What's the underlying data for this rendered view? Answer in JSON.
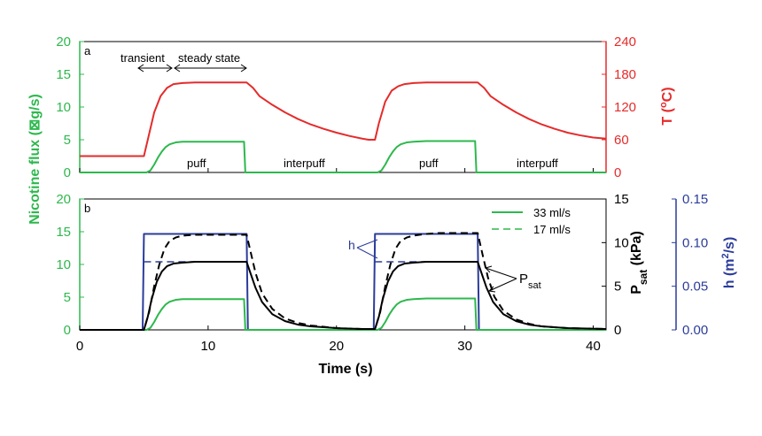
{
  "chart_data": [
    {
      "panel": "a",
      "type": "line",
      "xlim": [
        0,
        41
      ],
      "annotations": {
        "transient": "transient",
        "steady_state": "steady state",
        "puff_1": "puff",
        "interpuff_1": "interpuff",
        "puff_2": "puff",
        "interpuff_2": "interpuff"
      },
      "left_axis": {
        "label": "Nicotine flux (⊠g/s)",
        "ylim": [
          0,
          20
        ],
        "ticks": [
          "0",
          "5",
          "10",
          "15",
          "20"
        ],
        "color": "#2db84d"
      },
      "right_axis": {
        "label_main": "T (",
        "label_sup": "o",
        "label_end": "C)",
        "ylim": [
          0,
          240
        ],
        "ticks": [
          "0",
          "60",
          "120",
          "180",
          "240"
        ],
        "color": "#e52b2b"
      },
      "series": [
        {
          "axis": "right",
          "color": "#e52b2b",
          "x": [
            0,
            5,
            5.3,
            5.8,
            6.3,
            6.8,
            7.3,
            8,
            9,
            10,
            11,
            12,
            13,
            13.5,
            14,
            15,
            16,
            17,
            18,
            19,
            20,
            21,
            22,
            22.5,
            23,
            23.3,
            23.8,
            24.3,
            24.8,
            25.3,
            26,
            27,
            28,
            29,
            30,
            31,
            31.5,
            32,
            33,
            34,
            35,
            36,
            37,
            38,
            39,
            40,
            41
          ],
          "values": [
            30,
            30,
            60,
            110,
            140,
            155,
            162,
            164,
            165,
            165,
            165,
            165,
            165,
            155,
            140,
            124,
            110,
            98,
            88,
            80,
            73,
            67,
            62,
            60,
            60,
            90,
            130,
            150,
            158,
            162,
            164,
            165,
            165,
            165,
            165,
            165,
            155,
            140,
            124,
            110,
            98,
            88,
            80,
            73,
            68,
            64,
            62
          ]
        },
        {
          "axis": "left",
          "color": "#2db84d",
          "x": [
            0,
            5.2,
            5.5,
            5.8,
            6.1,
            6.4,
            6.7,
            7,
            7.5,
            8,
            9,
            10,
            11,
            12,
            12.8,
            12.9,
            13.1,
            23.2,
            23.5,
            23.8,
            24.1,
            24.4,
            24.7,
            25,
            25.5,
            26,
            27,
            28,
            29,
            30,
            30.8,
            30.9,
            31.1,
            41
          ],
          "values": [
            0,
            0,
            0.3,
            1.2,
            2.3,
            3.2,
            3.9,
            4.3,
            4.6,
            4.7,
            4.7,
            4.7,
            4.7,
            4.7,
            4.7,
            0,
            0,
            0,
            0.3,
            1.2,
            2.3,
            3.2,
            3.9,
            4.3,
            4.6,
            4.7,
            4.8,
            4.8,
            4.8,
            4.8,
            4.8,
            0,
            0,
            0
          ]
        }
      ]
    },
    {
      "panel": "b",
      "type": "line",
      "xlim": [
        0,
        41
      ],
      "xticks": [
        "0",
        "10",
        "20",
        "30",
        "40"
      ],
      "xlabel": "Time (s)",
      "legend": {
        "position": "top-right",
        "entries": [
          {
            "label": "33 ml/s",
            "style": "solid"
          },
          {
            "label": "17 ml/s",
            "style": "dashed"
          }
        ]
      },
      "annotations": {
        "h": "h",
        "psat_main": "P",
        "psat_sub": "sat"
      },
      "left_axis": {
        "label": "Nicotine flux (⊠g/s)",
        "ylim": [
          0,
          20
        ],
        "ticks": [
          "0",
          "5",
          "10",
          "15",
          "20"
        ],
        "color": "#2db84d"
      },
      "right_axis_1": {
        "label_main": "P",
        "label_sub": "sat",
        "label_end": " (kPa)",
        "ylim": [
          0,
          15
        ],
        "ticks": [
          "0",
          "5",
          "10",
          "15"
        ],
        "color": "#000000"
      },
      "right_axis_2": {
        "label_main": "h (m",
        "label_sup": "2",
        "label_end": "/s)",
        "ylim": [
          0,
          0.15
        ],
        "ticks": [
          "0.00",
          "0.05",
          "0.10",
          "0.15"
        ],
        "color": "#2b3c9a"
      },
      "series": [
        {
          "axis": "right_axis_2",
          "color": "#2b3c9a",
          "style": "solid",
          "x": [
            0,
            4.9,
            5,
            13,
            13.1,
            22.9,
            23,
            31,
            31.1,
            41
          ],
          "values": [
            0,
            0,
            0.11,
            0.11,
            0,
            0,
            0.11,
            0.11,
            0,
            0
          ]
        },
        {
          "axis": "right_axis_2",
          "color": "#2b3c9a",
          "style": "dashed",
          "x": [
            5,
            13,
            23,
            31
          ],
          "values": [
            0.078,
            0.078,
            0.078,
            0.078
          ],
          "segments": [
            [
              0,
              1
            ],
            [
              2,
              3
            ]
          ]
        },
        {
          "axis": "left",
          "color": "#2db84d",
          "style": "solid",
          "x": [
            0,
            5.2,
            5.5,
            5.8,
            6.1,
            6.4,
            6.7,
            7,
            7.5,
            8,
            9,
            10,
            11,
            12,
            12.8,
            12.9,
            13.1,
            23.2,
            23.5,
            23.8,
            24.1,
            24.4,
            24.7,
            25,
            25.5,
            26,
            27,
            28,
            29,
            30,
            30.8,
            30.9,
            31.1,
            41
          ],
          "values": [
            0,
            0,
            0.3,
            1.2,
            2.3,
            3.2,
            3.9,
            4.3,
            4.6,
            4.7,
            4.7,
            4.7,
            4.7,
            4.7,
            4.7,
            0,
            0,
            0,
            0.3,
            1.2,
            2.3,
            3.2,
            3.9,
            4.3,
            4.6,
            4.7,
            4.8,
            4.8,
            4.8,
            4.8,
            4.8,
            0,
            0,
            0
          ]
        },
        {
          "axis": "right_axis_1",
          "color": "#000000",
          "style": "solid",
          "x": [
            0,
            5,
            5.3,
            5.6,
            6,
            6.4,
            6.8,
            7.3,
            8,
            9,
            10,
            11,
            12,
            13,
            13.3,
            13.7,
            14.2,
            15,
            16,
            17,
            18,
            20,
            22,
            23,
            23.3,
            23.6,
            24,
            24.4,
            24.8,
            25.3,
            26,
            27,
            28,
            29,
            30,
            31,
            31.3,
            31.7,
            32.2,
            33,
            34,
            35,
            36,
            38,
            41
          ],
          "values": [
            0,
            0,
            1.5,
            3.5,
            5.5,
            6.7,
            7.3,
            7.6,
            7.7,
            7.8,
            7.8,
            7.8,
            7.8,
            7.8,
            6.5,
            4.8,
            3.2,
            1.8,
            1,
            0.6,
            0.4,
            0.2,
            0.1,
            0.1,
            1.5,
            3.5,
            5.5,
            6.7,
            7.3,
            7.6,
            7.7,
            7.8,
            7.8,
            7.8,
            7.8,
            7.8,
            6.5,
            4.8,
            3.2,
            1.8,
            1,
            0.6,
            0.4,
            0.2,
            0.1
          ]
        },
        {
          "axis": "right_axis_1",
          "color": "#000000",
          "style": "dashed",
          "x": [
            0,
            5,
            5.4,
            5.8,
            6.2,
            6.6,
            7,
            7.5,
            8,
            9,
            10,
            11,
            12,
            13,
            13.3,
            13.7,
            14.2,
            15,
            16,
            17,
            18,
            20,
            22,
            23,
            23.4,
            23.8,
            24.2,
            24.6,
            25,
            25.5,
            26,
            27,
            28,
            29,
            30,
            31,
            31.4,
            31.8,
            32.3,
            33,
            34,
            35,
            36,
            38,
            41
          ],
          "values": [
            0,
            0,
            2,
            5,
            7.5,
            9.3,
            10.2,
            10.6,
            10.8,
            10.9,
            10.9,
            10.9,
            10.9,
            10.9,
            9,
            6.5,
            4.2,
            2.4,
            1.3,
            0.8,
            0.5,
            0.2,
            0.1,
            0.1,
            2,
            5,
            7.5,
            9.3,
            10.2,
            10.6,
            10.8,
            11,
            11.1,
            11.1,
            11.1,
            11.1,
            8.5,
            6,
            3.8,
            2.2,
            1.2,
            0.7,
            0.4,
            0.2,
            0.1
          ]
        }
      ]
    }
  ]
}
